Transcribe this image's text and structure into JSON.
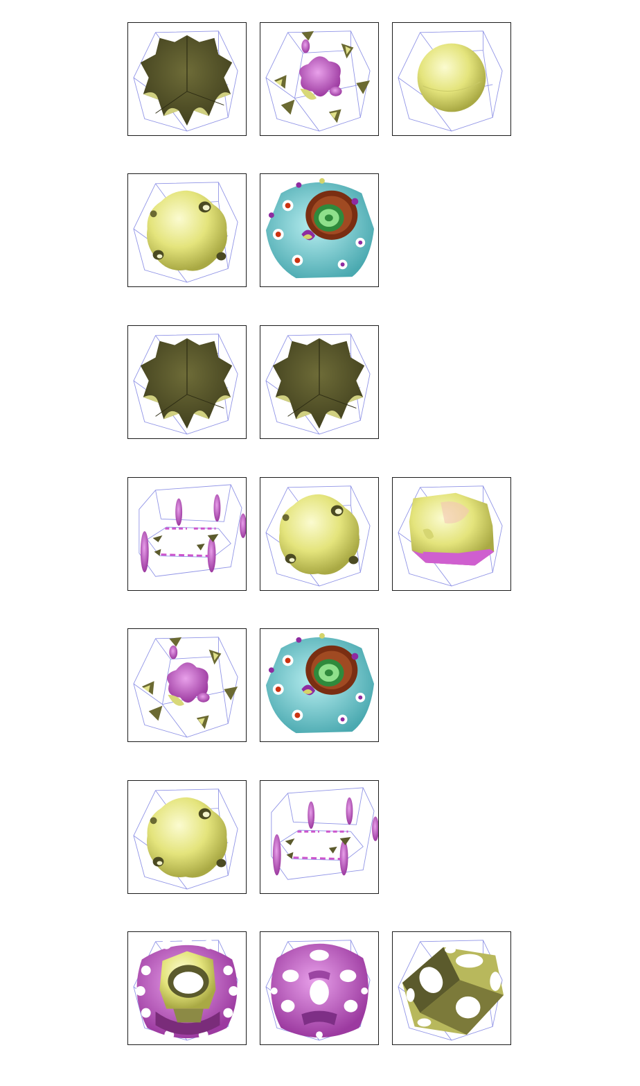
{
  "figure": {
    "rows": [
      {
        "tiles": [
          {
            "icon": "dark-olive-star-polyhedron-icon"
          },
          {
            "icon": "scattered-magenta-olive-fragments-icon"
          },
          {
            "icon": "yellow-sphere-icon"
          }
        ]
      },
      {
        "tiles": [
          {
            "icon": "yellow-lumpy-sphere-icon"
          },
          {
            "icon": "cyan-shell-with-rings-icon"
          }
        ]
      },
      {
        "tiles": [
          {
            "icon": "dark-olive-star-polyhedron-icon"
          },
          {
            "icon": "dark-olive-star-polyhedron-icon"
          }
        ]
      },
      {
        "tiles": [
          {
            "icon": "magenta-hexagonal-rods-icon"
          },
          {
            "icon": "yellow-lumpy-sphere-icon"
          },
          {
            "icon": "yellow-faceted-block-icon"
          }
        ]
      },
      {
        "tiles": [
          {
            "icon": "scattered-magenta-olive-fragments-icon"
          },
          {
            "icon": "cyan-shell-with-rings-icon"
          }
        ]
      },
      {
        "tiles": [
          {
            "icon": "yellow-lumpy-sphere-icon"
          },
          {
            "icon": "magenta-hexagonal-rods-icon"
          }
        ]
      },
      {
        "tiles": [
          {
            "icon": "magenta-perforated-shell-with-olive-tube-icon"
          },
          {
            "icon": "magenta-perforated-shell-icon"
          },
          {
            "icon": "olive-perforated-cube-icon"
          }
        ]
      }
    ]
  },
  "colors": {
    "olive_dark": "#5b5a2c",
    "olive_light": "#e9ea8f",
    "magenta": "#cc55cc",
    "cyan": "#66c8cc",
    "cage": "#8f93e6"
  }
}
